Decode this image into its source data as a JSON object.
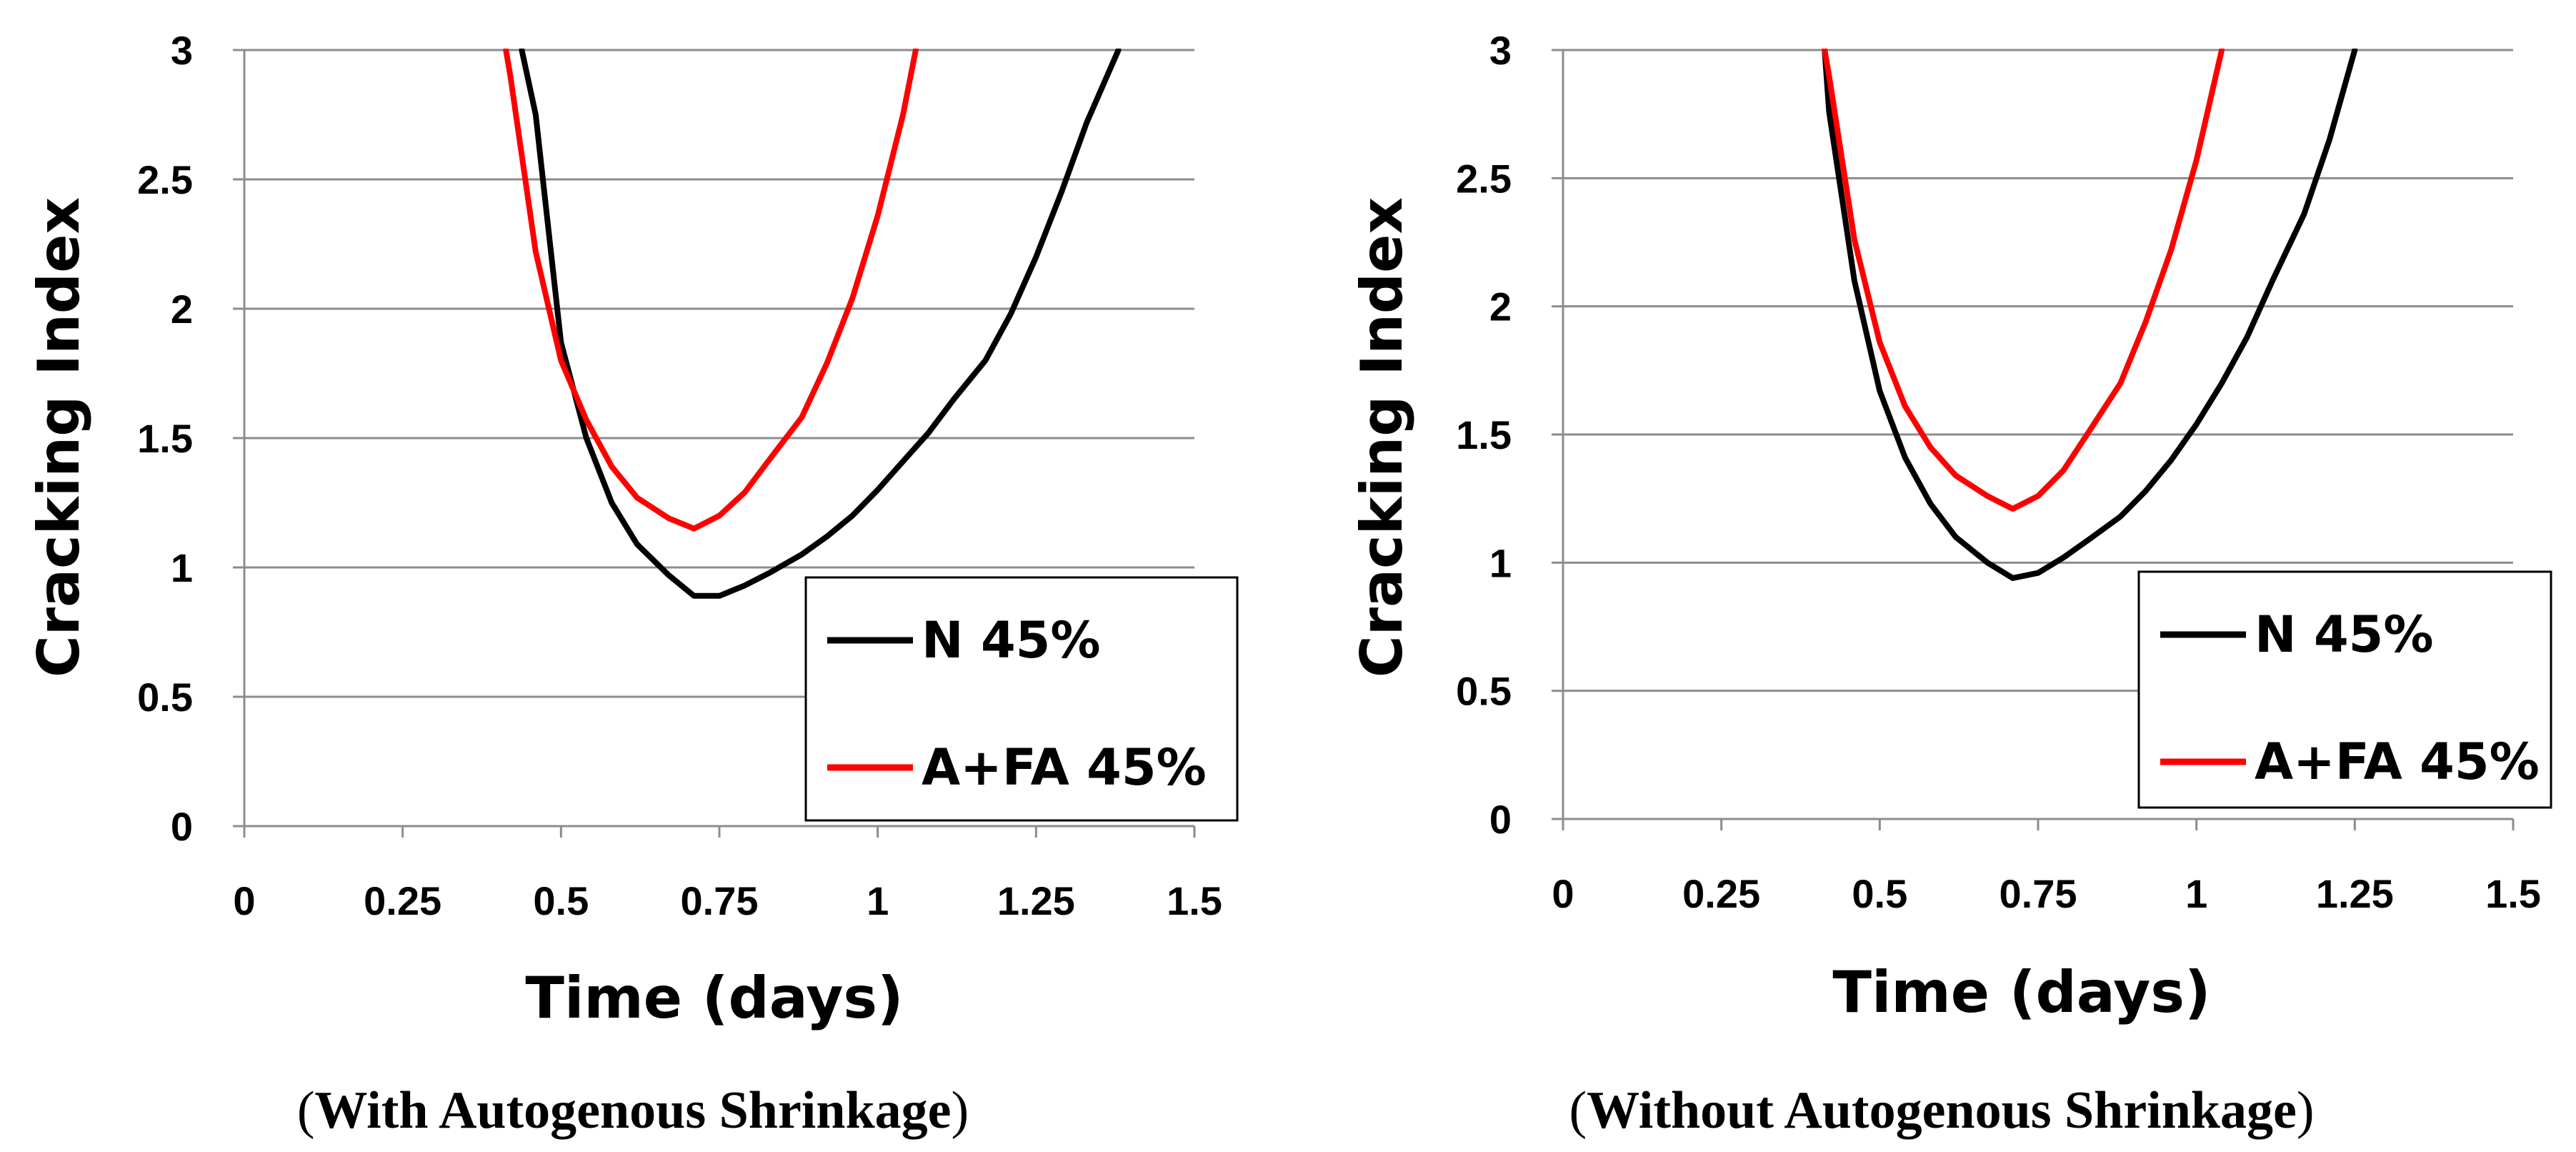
{
  "chart_data": [
    {
      "type": "line",
      "caption": "With Autogenous Shrinkage",
      "xlabel": "Time (days)",
      "ylabel": "Cracking Index",
      "xlim": [
        0,
        1.5
      ],
      "ylim": [
        0,
        3
      ],
      "xticks": [
        0,
        0.25,
        0.5,
        0.75,
        1,
        1.25,
        1.5
      ],
      "xtick_labels": [
        "0",
        "0.25",
        "0.5",
        "0.75",
        "1",
        "1.25",
        "1.5"
      ],
      "yticks": [
        0,
        0.5,
        1,
        1.5,
        2,
        2.5,
        3
      ],
      "ytick_labels": [
        "0",
        "0.5",
        "1",
        "1.5",
        "2",
        "2.5",
        "3"
      ],
      "grid": "horizontal",
      "legend_position": "bottom-right",
      "series": [
        {
          "name": "N 45%",
          "color": "#000000",
          "x": [
            0.438,
            0.46,
            0.5,
            0.54,
            0.58,
            0.62,
            0.67,
            0.71,
            0.75,
            0.79,
            0.83,
            0.88,
            0.92,
            0.96,
            1.0,
            1.04,
            1.08,
            1.12,
            1.17,
            1.21,
            1.25,
            1.29,
            1.33,
            1.38
          ],
          "values": [
            3.0,
            2.75,
            1.87,
            1.5,
            1.25,
            1.09,
            0.97,
            0.89,
            0.89,
            0.93,
            0.98,
            1.05,
            1.12,
            1.2,
            1.3,
            1.41,
            1.52,
            1.65,
            1.8,
            1.98,
            2.2,
            2.45,
            2.72,
            3.0
          ]
        },
        {
          "name": "A+FA 45%",
          "color": "#ff0000",
          "x": [
            0.413,
            0.42,
            0.46,
            0.5,
            0.54,
            0.58,
            0.62,
            0.67,
            0.71,
            0.75,
            0.79,
            0.83,
            0.88,
            0.92,
            0.96,
            1.0,
            1.04,
            1.06
          ],
          "values": [
            3.0,
            2.9,
            2.22,
            1.8,
            1.57,
            1.39,
            1.27,
            1.19,
            1.15,
            1.2,
            1.29,
            1.42,
            1.58,
            1.79,
            2.04,
            2.36,
            2.75,
            3.0
          ]
        }
      ]
    },
    {
      "type": "line",
      "caption": "Without Autogenous Shrinkage",
      "xlabel": "Time (days)",
      "ylabel": "Cracking Index",
      "xlim": [
        0,
        1.5
      ],
      "ylim": [
        0,
        3
      ],
      "xticks": [
        0,
        0.25,
        0.5,
        0.75,
        1,
        1.25,
        1.5
      ],
      "xtick_labels": [
        "0",
        "0.25",
        "0.5",
        "0.75",
        "1",
        "1.25",
        "1.5"
      ],
      "yticks": [
        0,
        0.5,
        1,
        1.5,
        2,
        2.5,
        3
      ],
      "ytick_labels": [
        "0",
        "0.5",
        "1",
        "1.5",
        "2",
        "2.5",
        "3"
      ],
      "grid": "horizontal",
      "legend_position": "bottom-right",
      "series": [
        {
          "name": "N 45%",
          "color": "#000000",
          "x": [
            0.413,
            0.42,
            0.46,
            0.5,
            0.54,
            0.58,
            0.62,
            0.67,
            0.71,
            0.75,
            0.79,
            0.83,
            0.88,
            0.92,
            0.96,
            1.0,
            1.04,
            1.08,
            1.12,
            1.17,
            1.21,
            1.25
          ],
          "values": [
            3.0,
            2.76,
            2.1,
            1.67,
            1.41,
            1.23,
            1.1,
            1.0,
            0.94,
            0.96,
            1.02,
            1.09,
            1.18,
            1.28,
            1.4,
            1.54,
            1.7,
            1.88,
            2.1,
            2.36,
            2.65,
            3.0
          ]
        },
        {
          "name": "A+FA 45%",
          "color": "#ff0000",
          "x": [
            0.413,
            0.42,
            0.46,
            0.5,
            0.54,
            0.58,
            0.62,
            0.67,
            0.71,
            0.75,
            0.79,
            0.83,
            0.88,
            0.92,
            0.96,
            1.0,
            1.04
          ],
          "values": [
            3.0,
            2.9,
            2.26,
            1.86,
            1.61,
            1.45,
            1.34,
            1.26,
            1.21,
            1.26,
            1.36,
            1.51,
            1.7,
            1.94,
            2.22,
            2.57,
            3.0
          ]
        }
      ]
    }
  ]
}
